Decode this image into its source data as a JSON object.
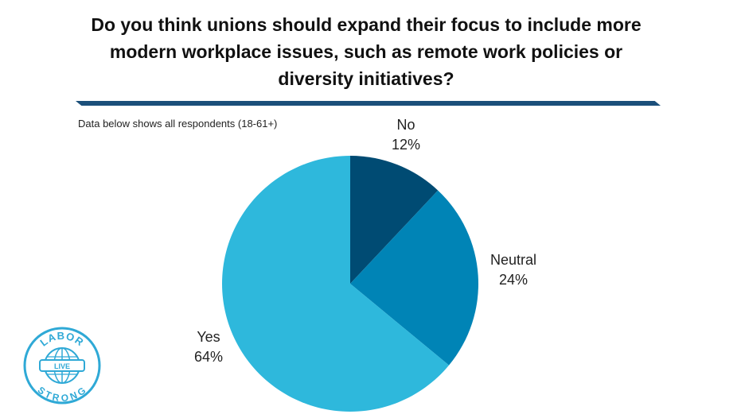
{
  "header": {
    "title_line1": "Do you think unions should expand their focus to include more",
    "title_line2": "modern workplace issues, such as remote work policies or",
    "title_line3": "diversity initiatives?",
    "subtitle": "Data below shows all respondents (18-61+)"
  },
  "chart_data": {
    "type": "pie",
    "slices": [
      {
        "name": "No",
        "value": 12,
        "label": "12%",
        "color": "#004b73"
      },
      {
        "name": "Neutral",
        "value": 24,
        "label": "24%",
        "color": "#0084b6"
      },
      {
        "name": "Yes",
        "value": 64,
        "label": "64%",
        "color": "#2eb8dc"
      }
    ]
  },
  "logo": {
    "top_text": "LABOR",
    "middle_text": "LIVE",
    "bottom_text": "STRONG",
    "color": "#2fa9d6"
  }
}
